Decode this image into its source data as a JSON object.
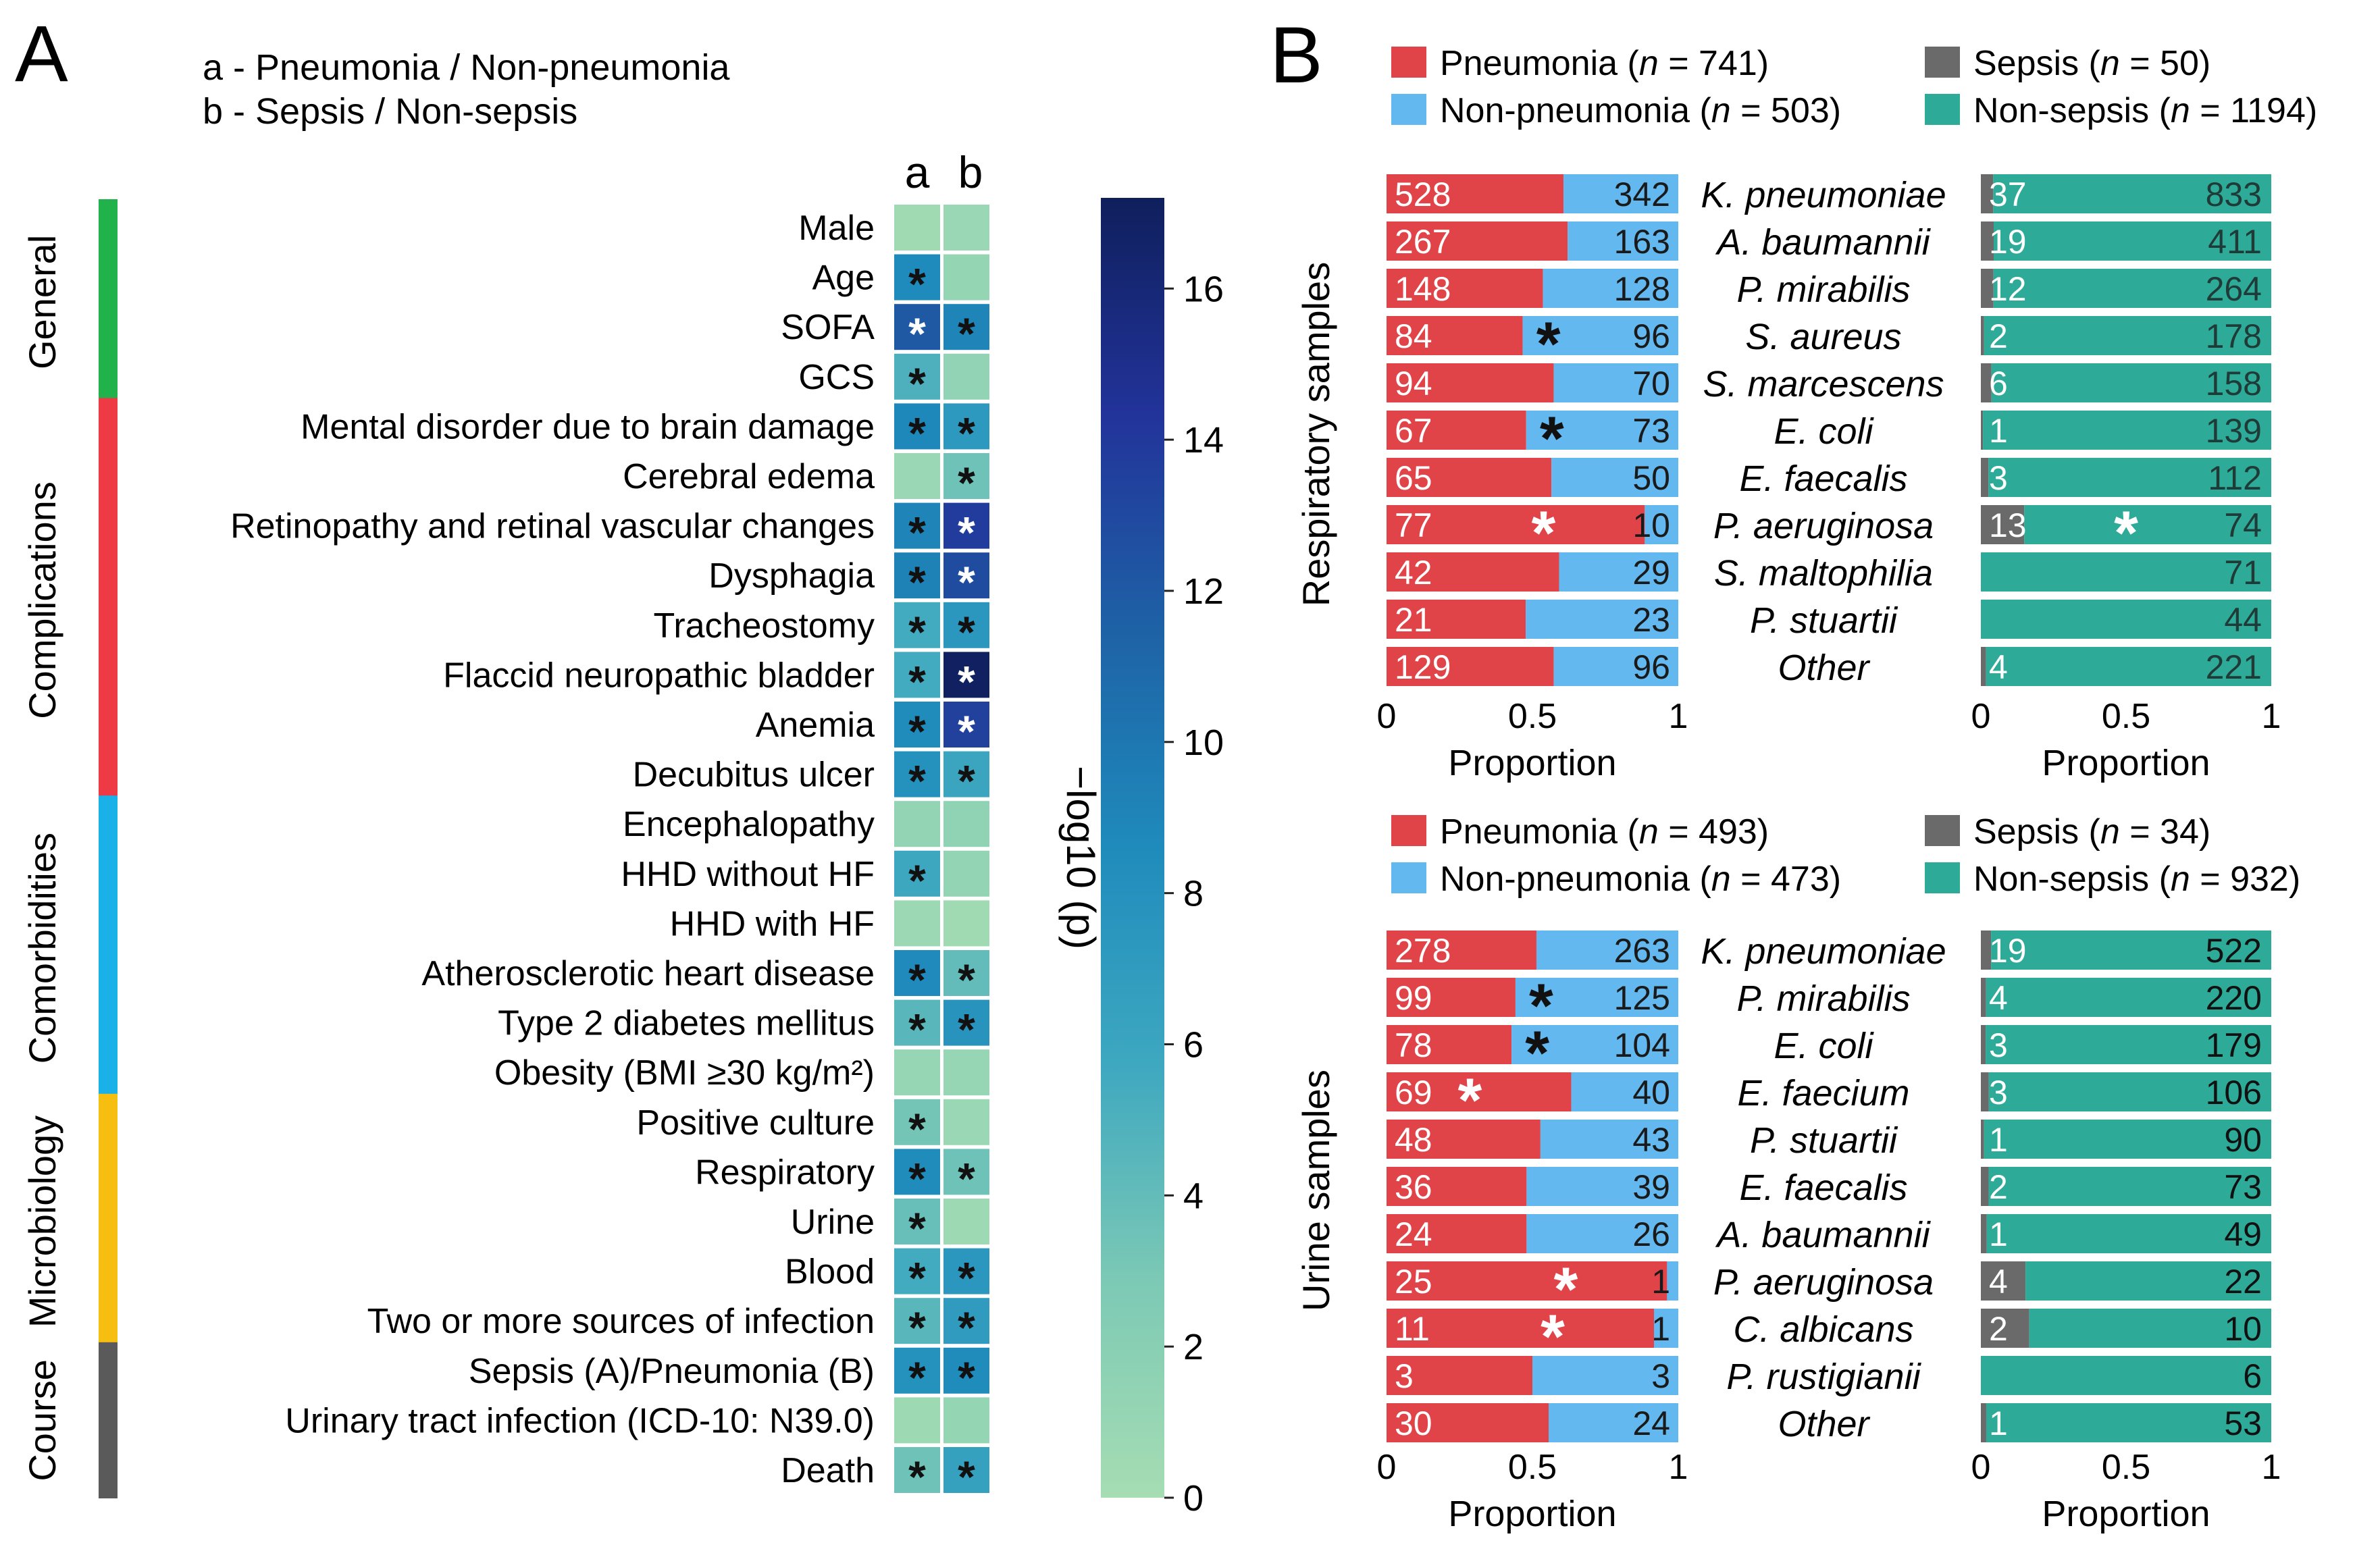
{
  "panel_a": {
    "letter": "A",
    "key_a": "a - Pneumonia / Non-pneumonia",
    "key_b": "b - Sepsis / Non-sepsis",
    "col_a": "a",
    "col_b": "b",
    "colorbar": {
      "title": "−log10 (p)",
      "min": 0,
      "max": 17.2,
      "ticks": [
        0,
        2,
        4,
        6,
        8,
        10,
        12,
        14,
        16
      ],
      "colors": [
        "#a6ddb3",
        "#7cc9b5",
        "#3ea8c0",
        "#1f8bbc",
        "#1e62a6",
        "#22339a",
        "#0f1f5c"
      ]
    },
    "groups": [
      {
        "name": "General",
        "color": "#22b24c",
        "from": 0,
        "to": 3
      },
      {
        "name": "Complications",
        "color": "#ee3a45",
        "from": 4,
        "to": 11
      },
      {
        "name": "Comorbidities",
        "color": "#1ab0e8",
        "from": 12,
        "to": 17
      },
      {
        "name": "Microbiology",
        "color": "#f6be11",
        "from": 18,
        "to": 22
      },
      {
        "name": "Course",
        "color": "#5a5a5a",
        "from": 23,
        "to": 25
      }
    ],
    "rows": [
      {
        "label": "Male",
        "a": 0.5,
        "b": 0.8,
        "sig_a": "",
        "sig_b": ""
      },
      {
        "label": "Age",
        "a": 8.6,
        "b": 1.2,
        "sig_a": "*",
        "sig_b": ""
      },
      {
        "label": "SOFA",
        "a": 12.0,
        "b": 9.0,
        "sig_a": "*",
        "sig_b": "*"
      },
      {
        "label": "GCS",
        "a": 5.0,
        "b": 1.4,
        "sig_a": "*",
        "sig_b": ""
      },
      {
        "label": "Mental disorder due to brain damage",
        "a": 8.8,
        "b": 7.2,
        "sig_a": "*",
        "sig_b": "*"
      },
      {
        "label": "Cerebral edema",
        "a": 0.8,
        "b": 3.5,
        "sig_a": "",
        "sig_b": "*"
      },
      {
        "label": "Retinopathy and retinal vascular changes",
        "a": 9.0,
        "b": 13.8,
        "sig_a": "*",
        "sig_b": "*"
      },
      {
        "label": "Dysphagia",
        "a": 9.2,
        "b": 12.8,
        "sig_a": "*",
        "sig_b": "*"
      },
      {
        "label": "Tracheostomy",
        "a": 5.5,
        "b": 7.5,
        "sig_a": "*",
        "sig_b": "*"
      },
      {
        "label": "Flaccid neuropathic bladder",
        "a": 5.5,
        "b": 17.0,
        "sig_a": "*",
        "sig_b": "*"
      },
      {
        "label": "Anemia",
        "a": 8.5,
        "b": 13.5,
        "sig_a": "*",
        "sig_b": "*"
      },
      {
        "label": "Decubitus ulcer",
        "a": 8.0,
        "b": 6.0,
        "sig_a": "*",
        "sig_b": "*"
      },
      {
        "label": "Encephalopathy",
        "a": 1.3,
        "b": 1.5,
        "sig_a": "",
        "sig_b": ""
      },
      {
        "label": "HHD without HF",
        "a": 5.8,
        "b": 1.3,
        "sig_a": "*",
        "sig_b": ""
      },
      {
        "label": "HHD with HF",
        "a": 0.7,
        "b": 0.4,
        "sig_a": "",
        "sig_b": ""
      },
      {
        "label": "Atherosclerotic heart disease",
        "a": 8.7,
        "b": 4.0,
        "sig_a": "*",
        "sig_b": "*"
      },
      {
        "label": "Type 2 diabetes mellitus",
        "a": 4.5,
        "b": 7.8,
        "sig_a": "*",
        "sig_b": "*"
      },
      {
        "label": "Obesity (BMI ≥30 kg/m²)",
        "a": 1.0,
        "b": 1.0,
        "sig_a": "",
        "sig_b": ""
      },
      {
        "label": "Positive culture",
        "a": 3.2,
        "b": 0.8,
        "sig_a": "*",
        "sig_b": ""
      },
      {
        "label": "Respiratory",
        "a": 8.5,
        "b": 3.5,
        "sig_a": "*",
        "sig_b": "*"
      },
      {
        "label": "Urine",
        "a": 3.8,
        "b": 0.6,
        "sig_a": "*",
        "sig_b": ""
      },
      {
        "label": "Blood",
        "a": 5.5,
        "b": 7.5,
        "sig_a": "*",
        "sig_b": "*"
      },
      {
        "label": "Two or more sources of infection",
        "a": 4.5,
        "b": 7.0,
        "sig_a": "*",
        "sig_b": "*"
      },
      {
        "label": "Sepsis (A)/Pneumonia (B)",
        "a": 8.0,
        "b": 8.5,
        "sig_a": "*",
        "sig_b": "*"
      },
      {
        "label": "Urinary tract infection (ICD-10: N39.0)",
        "a": 0.6,
        "b": 1.2,
        "sig_a": "",
        "sig_b": ""
      },
      {
        "label": "Death",
        "a": 3.5,
        "b": 6.5,
        "sig_a": "*",
        "sig_b": "*"
      }
    ]
  },
  "panel_b": {
    "letter": "B",
    "colors": {
      "pneumonia": "#e04448",
      "non_pneumonia": "#62b8ef",
      "sepsis": "#6a6a6a",
      "non_sepsis": "#2eaa98"
    },
    "axis_ticks": [
      "0",
      "0.5",
      "1"
    ],
    "xlabel": "Proportion",
    "sections": [
      {
        "title": "Respiratory samples",
        "legend": {
          "pneumonia": "Pneumonia",
          "pneumonia_n": "(n = 741)",
          "non_pneumonia": "Non-pneumonia",
          "non_pneumonia_n": "(n = 503)",
          "sepsis": "Sepsis",
          "sepsis_n": "(n = 50)",
          "non_sepsis": "Non-sepsis",
          "non_sepsis_n": "(n = 1194)"
        },
        "rows": [
          {
            "organism": "K. pneumoniae",
            "pneumonia": 528,
            "non_pneumonia": 342,
            "sepsis": 37,
            "non_sepsis": 833,
            "sig_p": "",
            "sig_s": ""
          },
          {
            "organism": "A. baumannii",
            "pneumonia": 267,
            "non_pneumonia": 163,
            "sepsis": 19,
            "non_sepsis": 411,
            "sig_p": "",
            "sig_s": ""
          },
          {
            "organism": "P. mirabilis",
            "pneumonia": 148,
            "non_pneumonia": 128,
            "sepsis": 12,
            "non_sepsis": 264,
            "sig_p": "",
            "sig_s": ""
          },
          {
            "organism": "S. aureus",
            "pneumonia": 84,
            "non_pneumonia": 96,
            "sepsis": 2,
            "non_sepsis": 178,
            "sig_p": "black",
            "sig_s": ""
          },
          {
            "organism": "S. marcescens",
            "pneumonia": 94,
            "non_pneumonia": 70,
            "sepsis": 6,
            "non_sepsis": 158,
            "sig_p": "",
            "sig_s": ""
          },
          {
            "organism": "E. coli",
            "pneumonia": 67,
            "non_pneumonia": 73,
            "sepsis": 1,
            "non_sepsis": 139,
            "sig_p": "black",
            "sig_s": ""
          },
          {
            "organism": "E. faecalis",
            "pneumonia": 65,
            "non_pneumonia": 50,
            "sepsis": 3,
            "non_sepsis": 112,
            "sig_p": "",
            "sig_s": ""
          },
          {
            "organism": "P. aeruginosa",
            "pneumonia": 77,
            "non_pneumonia": 10,
            "sepsis": 13,
            "non_sepsis": 74,
            "sig_p": "white",
            "sig_s": "white"
          },
          {
            "organism": "S. maltophilia",
            "pneumonia": 42,
            "non_pneumonia": 29,
            "sepsis": 0,
            "non_sepsis": 71,
            "sig_p": "",
            "sig_s": ""
          },
          {
            "organism": "P. stuartii",
            "pneumonia": 21,
            "non_pneumonia": 23,
            "sepsis": 0,
            "non_sepsis": 44,
            "sig_p": "",
            "sig_s": ""
          },
          {
            "organism": "Other",
            "pneumonia": 129,
            "non_pneumonia": 96,
            "sepsis": 4,
            "non_sepsis": 221,
            "sig_p": "",
            "sig_s": ""
          }
        ]
      },
      {
        "title": "Urine samples",
        "legend": {
          "pneumonia": "Pneumonia",
          "pneumonia_n": "(n = 493)",
          "non_pneumonia": "Non-pneumonia",
          "non_pneumonia_n": "(n = 473)",
          "sepsis": "Sepsis",
          "sepsis_n": "(n = 34)",
          "non_sepsis": "Non-sepsis",
          "non_sepsis_n": "(n = 932)"
        },
        "rows": [
          {
            "organism": "K. pneumoniae",
            "pneumonia": 278,
            "non_pneumonia": 263,
            "sepsis": 19,
            "non_sepsis": 522,
            "sig_p": "",
            "sig_s": ""
          },
          {
            "organism": "P. mirabilis",
            "pneumonia": 99,
            "non_pneumonia": 125,
            "sepsis": 4,
            "non_sepsis": 220,
            "sig_p": "black",
            "sig_s": ""
          },
          {
            "organism": "E. coli",
            "pneumonia": 78,
            "non_pneumonia": 104,
            "sepsis": 3,
            "non_sepsis": 179,
            "sig_p": "black",
            "sig_s": ""
          },
          {
            "organism": "E. faecium",
            "pneumonia": 69,
            "non_pneumonia": 40,
            "sepsis": 3,
            "non_sepsis": 106,
            "sig_p": "white",
            "sig_s": ""
          },
          {
            "organism": "P. stuartii",
            "pneumonia": 48,
            "non_pneumonia": 43,
            "sepsis": 1,
            "non_sepsis": 90,
            "sig_p": "",
            "sig_s": ""
          },
          {
            "organism": "E. faecalis",
            "pneumonia": 36,
            "non_pneumonia": 39,
            "sepsis": 2,
            "non_sepsis": 73,
            "sig_p": "",
            "sig_s": ""
          },
          {
            "organism": "A. baumannii",
            "pneumonia": 24,
            "non_pneumonia": 26,
            "sepsis": 1,
            "non_sepsis": 49,
            "sig_p": "",
            "sig_s": ""
          },
          {
            "organism": "P. aeruginosa",
            "pneumonia": 25,
            "non_pneumonia": 1,
            "sepsis": 4,
            "non_sepsis": 22,
            "sig_p": "white",
            "sig_s": ""
          },
          {
            "organism": "C. albicans",
            "pneumonia": 11,
            "non_pneumonia": 1,
            "sepsis": 2,
            "non_sepsis": 10,
            "sig_p": "white",
            "sig_s": ""
          },
          {
            "organism": "P. rustigianii",
            "pneumonia": 3,
            "non_pneumonia": 3,
            "sepsis": 0,
            "non_sepsis": 6,
            "sig_p": "",
            "sig_s": ""
          },
          {
            "organism": "Other",
            "pneumonia": 30,
            "non_pneumonia": 24,
            "sepsis": 1,
            "non_sepsis": 53,
            "sig_p": "",
            "sig_s": ""
          }
        ]
      }
    ]
  },
  "chart_data": [
    {
      "type": "heatmap",
      "title": "",
      "columns": [
        "a",
        "b"
      ],
      "value_label": "−log10 (p)",
      "range": [
        0,
        17.2
      ],
      "rows": [
        "Male",
        "Age",
        "SOFA",
        "GCS",
        "Mental disorder due to brain damage",
        "Cerebral edema",
        "Retinopathy and retinal vascular changes",
        "Dysphagia",
        "Tracheostomy",
        "Flaccid neuropathic bladder",
        "Anemia",
        "Decubitus ulcer",
        "Encephalopathy",
        "HHD without HF",
        "HHD with HF",
        "Atherosclerotic heart disease",
        "Type 2 diabetes mellitus",
        "Obesity (BMI ≥30 kg/m²)",
        "Positive culture",
        "Respiratory",
        "Urine",
        "Blood",
        "Two or more sources of infection",
        "Sepsis (A)/Pneumonia (B)",
        "Urinary tract infection (ICD-10: N39.0)",
        "Death"
      ]
    },
    {
      "type": "bar",
      "orientation": "horizontal",
      "stacked": true,
      "normalized": true,
      "title": "Respiratory samples: Pneumonia vs Non-pneumonia",
      "xlabel": "Proportion",
      "xlim": [
        0,
        1
      ]
    },
    {
      "type": "bar",
      "orientation": "horizontal",
      "stacked": true,
      "normalized": true,
      "title": "Respiratory samples: Sepsis vs Non-sepsis",
      "xlabel": "Proportion",
      "xlim": [
        0,
        1
      ]
    },
    {
      "type": "bar",
      "orientation": "horizontal",
      "stacked": true,
      "normalized": true,
      "title": "Urine samples: Pneumonia vs Non-pneumonia",
      "xlabel": "Proportion",
      "xlim": [
        0,
        1
      ]
    },
    {
      "type": "bar",
      "orientation": "horizontal",
      "stacked": true,
      "normalized": true,
      "title": "Urine samples: Sepsis vs Non-sepsis",
      "xlabel": "Proportion",
      "xlim": [
        0,
        1
      ]
    }
  ]
}
